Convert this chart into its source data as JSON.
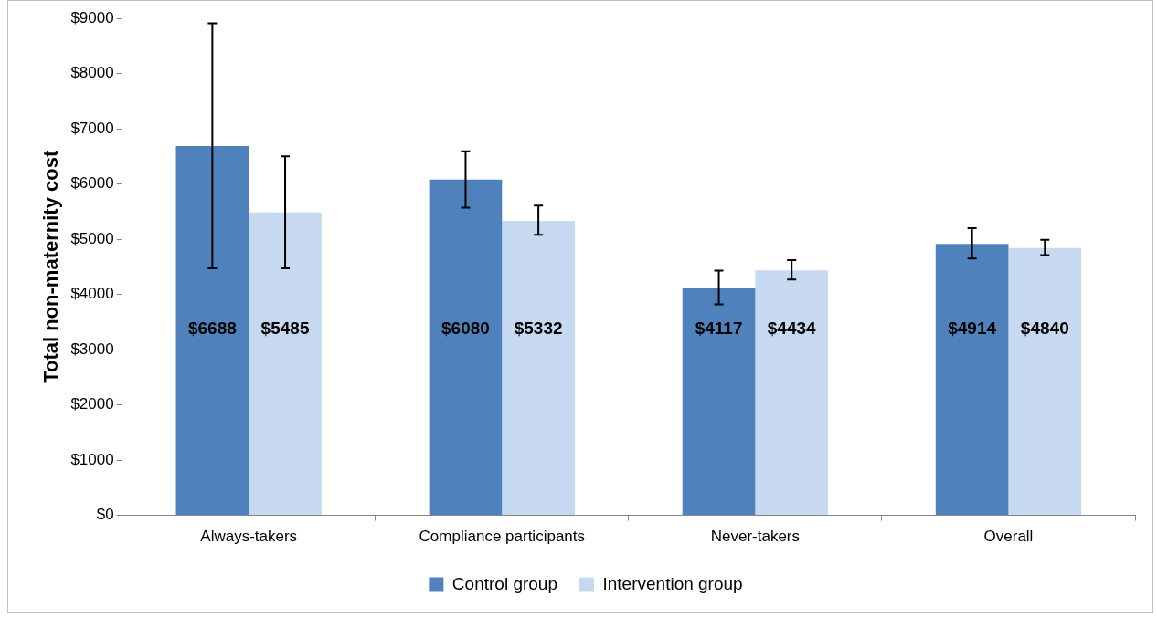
{
  "chart_data": {
    "type": "bar",
    "ylabel": "Total non-maternity cost",
    "categories": [
      "Always-takers",
      "Compliance participants",
      "Never-takers",
      "Overall"
    ],
    "series": [
      {
        "name": "Control group",
        "color": "#4f81bd",
        "values": [
          6688,
          6080,
          4117,
          4914
        ],
        "value_labels": [
          "$6688",
          "$6080",
          "$4117",
          "$4914"
        ],
        "errors": [
          [
            4470,
            8910
          ],
          [
            5570,
            6590
          ],
          [
            3820,
            4430
          ],
          [
            4650,
            5200
          ]
        ]
      },
      {
        "name": "Intervention group",
        "color": "#c6d9f1",
        "values": [
          5485,
          5332,
          4434,
          4840
        ],
        "value_labels": [
          "$5485",
          "$5332",
          "$4434",
          "$4840"
        ],
        "errors": [
          [
            4470,
            6500
          ],
          [
            5080,
            5610
          ],
          [
            4270,
            4620
          ],
          [
            4710,
            4990
          ]
        ]
      }
    ],
    "ylim": [
      0,
      9000
    ],
    "yticks": [
      {
        "value": 0,
        "label": "$0"
      },
      {
        "value": 1000,
        "label": "$1000"
      },
      {
        "value": 2000,
        "label": "$2000"
      },
      {
        "value": 3000,
        "label": "$3000"
      },
      {
        "value": 4000,
        "label": "$4000"
      },
      {
        "value": 5000,
        "label": "$5000"
      },
      {
        "value": 6000,
        "label": "$6000"
      },
      {
        "value": 7000,
        "label": "$7000"
      },
      {
        "value": 8000,
        "label": "$8000"
      },
      {
        "value": 9000,
        "label": "$9000"
      }
    ],
    "grid": false,
    "legend": "bottom"
  }
}
